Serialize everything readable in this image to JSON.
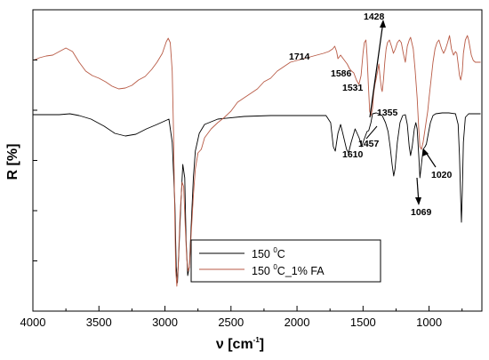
{
  "chart_data": {
    "type": "line",
    "xlabel": "ν [cm",
    "xlabel_sup": "-1",
    "xlabel_end": "]",
    "ylabel": "R [%]",
    "xlim": [
      4000,
      600
    ],
    "x_reversed": true,
    "y_tick_labels": false,
    "x_ticks": [
      4000,
      3500,
      3000,
      2500,
      2000,
      1500,
      1000
    ],
    "x_tick_labels": [
      "4000",
      "3500",
      "3000",
      "2500",
      "2000",
      "1500",
      "1000"
    ],
    "grid": false,
    "legend_position": "bottom-center",
    "series": [
      {
        "name": "150 °C",
        "legend_main": "150 ",
        "legend_sup": "0",
        "legend_rest": "C",
        "color": "#000000",
        "points": [
          [
            4000,
            129
          ],
          [
            3800,
            129
          ],
          [
            3720,
            128
          ],
          [
            3650,
            130
          ],
          [
            3560,
            134
          ],
          [
            3460,
            142
          ],
          [
            3380,
            150
          ],
          [
            3300,
            153
          ],
          [
            3220,
            151
          ],
          [
            3140,
            145
          ],
          [
            3060,
            140
          ],
          [
            3000,
            136
          ],
          [
            2970,
            134
          ],
          [
            2945,
            160
          ],
          [
            2925,
            230
          ],
          [
            2915,
            300
          ],
          [
            2905,
            318
          ],
          [
            2895,
            285
          ],
          [
            2880,
            230
          ],
          [
            2865,
            185
          ],
          [
            2850,
            200
          ],
          [
            2840,
            270
          ],
          [
            2828,
            310
          ],
          [
            2815,
            300
          ],
          [
            2800,
            250
          ],
          [
            2785,
            200
          ],
          [
            2770,
            170
          ],
          [
            2740,
            150
          ],
          [
            2700,
            140
          ],
          [
            2600,
            134
          ],
          [
            2400,
            131
          ],
          [
            2200,
            130
          ],
          [
            2000,
            130
          ],
          [
            1850,
            130
          ],
          [
            1780,
            130
          ],
          [
            1745,
            138
          ],
          [
            1725,
            165
          ],
          [
            1710,
            170
          ],
          [
            1690,
            150
          ],
          [
            1670,
            140
          ],
          [
            1650,
            152
          ],
          [
            1625,
            168
          ],
          [
            1610,
            172
          ],
          [
            1590,
            160
          ],
          [
            1560,
            145
          ],
          [
            1530,
            155
          ],
          [
            1510,
            165
          ],
          [
            1495,
            158
          ],
          [
            1470,
            148
          ],
          [
            1457,
            147
          ],
          [
            1440,
            138
          ],
          [
            1428,
            128
          ],
          [
            1400,
            127
          ],
          [
            1380,
            128
          ],
          [
            1355,
            130
          ],
          [
            1330,
            138
          ],
          [
            1310,
            148
          ],
          [
            1295,
            165
          ],
          [
            1280,
            185
          ],
          [
            1268,
            198
          ],
          [
            1258,
            190
          ],
          [
            1240,
            160
          ],
          [
            1220,
            138
          ],
          [
            1200,
            130
          ],
          [
            1180,
            129
          ],
          [
            1165,
            140
          ],
          [
            1150,
            165
          ],
          [
            1140,
            175
          ],
          [
            1128,
            165
          ],
          [
            1112,
            145
          ],
          [
            1100,
            138
          ],
          [
            1090,
            145
          ],
          [
            1078,
            175
          ],
          [
            1069,
            200
          ],
          [
            1058,
            185
          ],
          [
            1045,
            168
          ],
          [
            1030,
            165
          ],
          [
            1020,
            162
          ],
          [
            1005,
            150
          ],
          [
            990,
            138
          ],
          [
            970,
            130
          ],
          [
            950,
            128
          ],
          [
            900,
            127
          ],
          [
            850,
            127
          ],
          [
            800,
            128
          ],
          [
            780,
            140
          ],
          [
            770,
            175
          ],
          [
            762,
            215
          ],
          [
            755,
            250
          ],
          [
            748,
            215
          ],
          [
            740,
            160
          ],
          [
            725,
            132
          ],
          [
            700,
            128
          ],
          [
            650,
            128
          ],
          [
            610,
            128
          ]
        ]
      },
      {
        "name": "150 °C_1% FA",
        "legend_main": "150 ",
        "legend_sup": "0",
        "legend_rest": "C_1%  FA",
        "color": "#b85a45",
        "points": [
          [
            4000,
            68
          ],
          [
            3950,
            65
          ],
          [
            3900,
            63
          ],
          [
            3850,
            62
          ],
          [
            3800,
            58
          ],
          [
            3750,
            54
          ],
          [
            3700,
            58
          ],
          [
            3650,
            70
          ],
          [
            3600,
            80
          ],
          [
            3550,
            85
          ],
          [
            3500,
            88
          ],
          [
            3450,
            92
          ],
          [
            3400,
            97
          ],
          [
            3350,
            100
          ],
          [
            3300,
            99
          ],
          [
            3250,
            96
          ],
          [
            3200,
            90
          ],
          [
            3150,
            86
          ],
          [
            3100,
            78
          ],
          [
            3060,
            70
          ],
          [
            3020,
            60
          ],
          [
            2990,
            47
          ],
          [
            2975,
            43
          ],
          [
            2960,
            48
          ],
          [
            2945,
            80
          ],
          [
            2935,
            150
          ],
          [
            2925,
            250
          ],
          [
            2918,
            305
          ],
          [
            2910,
            322
          ],
          [
            2900,
            300
          ],
          [
            2885,
            240
          ],
          [
            2870,
            205
          ],
          [
            2858,
            210
          ],
          [
            2845,
            260
          ],
          [
            2835,
            290
          ],
          [
            2825,
            305
          ],
          [
            2815,
            300
          ],
          [
            2800,
            260
          ],
          [
            2785,
            220
          ],
          [
            2770,
            190
          ],
          [
            2750,
            172
          ],
          [
            2725,
            168
          ],
          [
            2700,
            155
          ],
          [
            2650,
            145
          ],
          [
            2600,
            138
          ],
          [
            2550,
            132
          ],
          [
            2500,
            125
          ],
          [
            2450,
            115
          ],
          [
            2400,
            110
          ],
          [
            2350,
            105
          ],
          [
            2300,
            100
          ],
          [
            2250,
            92
          ],
          [
            2200,
            88
          ],
          [
            2150,
            80
          ],
          [
            2100,
            75
          ],
          [
            2050,
            70
          ],
          [
            2000,
            68
          ],
          [
            1950,
            66
          ],
          [
            1900,
            64
          ],
          [
            1850,
            62
          ],
          [
            1800,
            60
          ],
          [
            1760,
            58
          ],
          [
            1730,
            55
          ],
          [
            1714,
            52
          ],
          [
            1700,
            58
          ],
          [
            1690,
            66
          ],
          [
            1670,
            62
          ],
          [
            1650,
            66
          ],
          [
            1620,
            72
          ],
          [
            1600,
            78
          ],
          [
            1586,
            80
          ],
          [
            1570,
            82
          ],
          [
            1550,
            90
          ],
          [
            1531,
            95
          ],
          [
            1515,
            85
          ],
          [
            1500,
            60
          ],
          [
            1490,
            48
          ],
          [
            1478,
            45
          ],
          [
            1470,
            62
          ],
          [
            1460,
            95
          ],
          [
            1450,
            125
          ],
          [
            1440,
            130
          ],
          [
            1428,
            122
          ],
          [
            1420,
            105
          ],
          [
            1410,
            95
          ],
          [
            1400,
            88
          ],
          [
            1390,
            80
          ],
          [
            1380,
            72
          ],
          [
            1370,
            88
          ],
          [
            1360,
            100
          ],
          [
            1355,
            103
          ],
          [
            1345,
            90
          ],
          [
            1335,
            70
          ],
          [
            1325,
            55
          ],
          [
            1315,
            48
          ],
          [
            1300,
            45
          ],
          [
            1285,
            52
          ],
          [
            1270,
            60
          ],
          [
            1255,
            55
          ],
          [
            1240,
            48
          ],
          [
            1225,
            45
          ],
          [
            1210,
            48
          ],
          [
            1195,
            60
          ],
          [
            1180,
            70
          ],
          [
            1165,
            52
          ],
          [
            1150,
            45
          ],
          [
            1140,
            42
          ],
          [
            1120,
            55
          ],
          [
            1105,
            80
          ],
          [
            1090,
            110
          ],
          [
            1078,
            145
          ],
          [
            1069,
            165
          ],
          [
            1058,
            168
          ],
          [
            1045,
            160
          ],
          [
            1035,
            150
          ],
          [
            1020,
            135
          ],
          [
            1010,
            125
          ],
          [
            1000,
            110
          ],
          [
            985,
            90
          ],
          [
            970,
            70
          ],
          [
            955,
            55
          ],
          [
            940,
            48
          ],
          [
            925,
            45
          ],
          [
            905,
            55
          ],
          [
            890,
            60
          ],
          [
            875,
            55
          ],
          [
            860,
            48
          ],
          [
            845,
            40
          ],
          [
            830,
            55
          ],
          [
            815,
            62
          ],
          [
            800,
            58
          ],
          [
            790,
            60
          ],
          [
            780,
            72
          ],
          [
            770,
            85
          ],
          [
            760,
            90
          ],
          [
            748,
            80
          ],
          [
            740,
            60
          ],
          [
            725,
            45
          ],
          [
            710,
            40
          ],
          [
            700,
            45
          ],
          [
            680,
            62
          ],
          [
            665,
            68
          ],
          [
            650,
            70
          ],
          [
            630,
            70
          ],
          [
            610,
            70
          ]
        ]
      }
    ],
    "annotations": [
      {
        "text": "1428",
        "x": 1428
      },
      {
        "text": "1714",
        "x": 1714
      },
      {
        "text": "1586",
        "x": 1586
      },
      {
        "text": "1531",
        "x": 1531
      },
      {
        "text": "1355",
        "x": 1355
      },
      {
        "text": "1457",
        "x": 1457
      },
      {
        "text": "1610",
        "x": 1610
      },
      {
        "text": "1020",
        "x": 1020
      },
      {
        "text": "1069",
        "x": 1069
      }
    ]
  }
}
